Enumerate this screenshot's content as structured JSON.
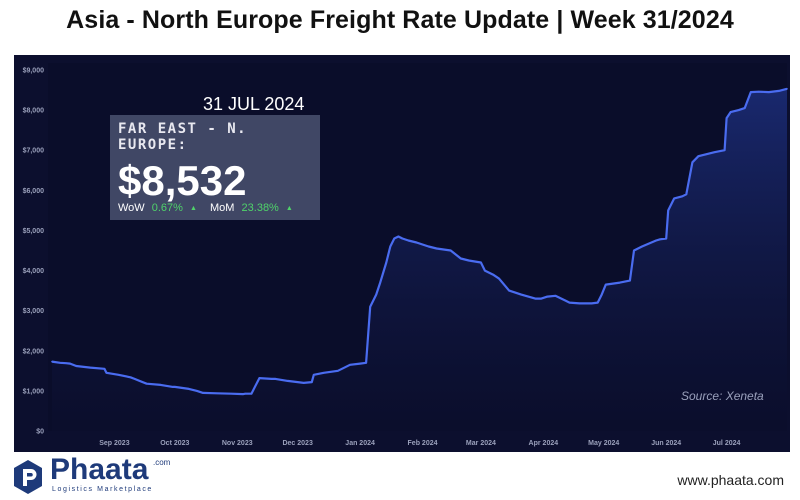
{
  "title": "Asia - North Europe Freight Rate Update | Week 31/2024",
  "info": {
    "date": "31 JUL 2024",
    "route_label": "FAR EAST - N. EUROPE:",
    "value": "$8,532",
    "wow_label": "WoW",
    "wow_value": "0.67%",
    "mom_label": "MoM",
    "mom_value": "23.38%"
  },
  "source": "Source: Xeneta",
  "brand": {
    "name": "Phaata",
    "domain_suffix": ".com",
    "tagline": "Logistics Marketplace",
    "website": "www.phaata.com"
  },
  "colors": {
    "background": "#0c0f2e",
    "line": "#4a6cf0",
    "positive": "#4fd26a",
    "brand": "#1e3a7a"
  },
  "chart_data": {
    "type": "area",
    "title": "",
    "xlabel": "",
    "ylabel": "",
    "ylim": [
      0,
      9000
    ],
    "yticks": [
      0,
      1000,
      2000,
      3000,
      4000,
      5000,
      6000,
      7000,
      8000,
      9000
    ],
    "ytick_labels": [
      "$0",
      "$1,000",
      "$2,000",
      "$3,000",
      "$4,000",
      "$5,000",
      "$6,000",
      "$7,000",
      "$8,000",
      "$9,000"
    ],
    "xlim": [
      "2023-08-01",
      "2024-07-31"
    ],
    "xtick_dates": [
      "2023-09-01",
      "2023-10-01",
      "2023-11-01",
      "2023-12-01",
      "2024-01-01",
      "2024-02-01",
      "2024-03-01",
      "2024-04-01",
      "2024-05-01",
      "2024-06-01",
      "2024-07-01"
    ],
    "xtick_labels": [
      "Sep 2023",
      "Oct 2023",
      "Nov 2023",
      "Dec 2023",
      "Jan 2024",
      "Feb 2024",
      "Mar 2024",
      "Apr 2024",
      "May 2024",
      "Jun 2024",
      "Jul 2024"
    ],
    "grid": false,
    "series": [
      {
        "x": [
          "2023-08-01",
          "2023-08-05",
          "2023-08-08",
          "2023-08-10",
          "2023-08-13",
          "2023-08-20",
          "2023-08-27",
          "2023-08-28",
          "2023-09-03",
          "2023-09-09",
          "2023-09-11",
          "2023-09-17",
          "2023-09-24",
          "2023-09-30",
          "2023-10-01",
          "2023-10-08",
          "2023-10-12",
          "2023-10-15",
          "2023-10-22",
          "2023-10-29",
          "2023-11-04",
          "2023-11-05",
          "2023-11-08",
          "2023-11-12",
          "2023-11-18",
          "2023-11-20",
          "2023-11-26",
          "2023-12-04",
          "2023-12-08",
          "2023-12-09",
          "2023-12-14",
          "2023-12-21",
          "2023-12-25",
          "2023-12-27",
          "2024-01-01",
          "2024-01-04",
          "2024-01-06",
          "2024-01-09",
          "2024-01-11",
          "2024-01-14",
          "2024-01-16",
          "2024-01-18",
          "2024-01-20",
          "2024-01-22",
          "2024-01-25",
          "2024-01-29",
          "2024-02-01",
          "2024-02-04",
          "2024-02-08",
          "2024-02-15",
          "2024-02-20",
          "2024-02-24",
          "2024-03-01",
          "2024-03-03",
          "2024-03-07",
          "2024-03-10",
          "2024-03-15",
          "2024-03-18",
          "2024-03-21",
          "2024-03-28",
          "2024-03-31",
          "2024-04-03",
          "2024-04-07",
          "2024-04-12",
          "2024-04-14",
          "2024-04-19",
          "2024-04-25",
          "2024-04-28",
          "2024-04-30",
          "2024-05-02",
          "2024-05-09",
          "2024-05-14",
          "2024-05-16",
          "2024-05-20",
          "2024-05-27",
          "2024-05-29",
          "2024-06-01",
          "2024-06-02",
          "2024-06-05",
          "2024-06-09",
          "2024-06-11",
          "2024-06-14",
          "2024-06-17",
          "2024-06-21",
          "2024-06-25",
          "2024-06-30",
          "2024-07-01",
          "2024-07-03",
          "2024-07-07",
          "2024-07-10",
          "2024-07-13",
          "2024-07-17",
          "2024-07-22",
          "2024-07-27",
          "2024-07-31"
        ],
        "values": [
          1730,
          1700,
          1690,
          1680,
          1620,
          1580,
          1550,
          1450,
          1400,
          1340,
          1300,
          1180,
          1150,
          1100,
          1100,
          1050,
          1000,
          950,
          940,
          930,
          920,
          930,
          930,
          1320,
          1300,
          1300,
          1250,
          1200,
          1220,
          1400,
          1450,
          1500,
          1600,
          1650,
          1680,
          1700,
          3100,
          3400,
          3700,
          4200,
          4600,
          4800,
          4850,
          4800,
          4750,
          4700,
          4650,
          4600,
          4550,
          4500,
          4300,
          4250,
          4200,
          4000,
          3900,
          3800,
          3500,
          3450,
          3400,
          3300,
          3300,
          3350,
          3370,
          3250,
          3200,
          3180,
          3180,
          3200,
          3400,
          3650,
          3700,
          3750,
          4500,
          4600,
          4750,
          4780,
          4800,
          5500,
          5800,
          5850,
          5900,
          6700,
          6850,
          6900,
          6950,
          7000,
          7800,
          7950,
          8000,
          8050,
          8450,
          8460,
          8450,
          8480,
          8532
        ]
      }
    ]
  }
}
